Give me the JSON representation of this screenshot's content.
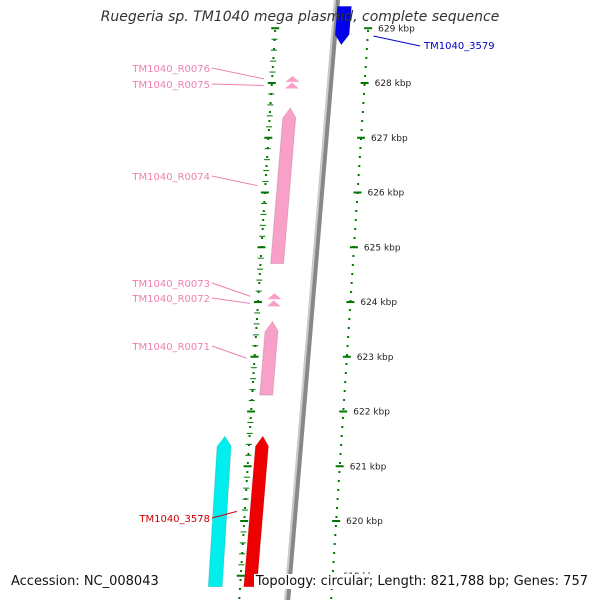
{
  "title": "Ruegeria sp. TM1040 mega plasmid, complete sequence",
  "footer": {
    "accession": "Accession: NC_008043",
    "summary": "Topology: circular; Length: 821,788 bp; Genes: 757"
  },
  "colors": {
    "trna_features": "#f9a0c8",
    "label_pink": "#f080b0",
    "cds_blue": "#0000ee",
    "cds_red": "#ee0000",
    "cds_cyan": "#00eeee",
    "backbone": "#888888",
    "tick_green": "#007700",
    "label_red": "#cc0000",
    "label_blue": "#0000cc"
  },
  "scale": {
    "unit": "kbp",
    "ticks": [
      {
        "kbp": 629,
        "label": "629 kbp"
      },
      {
        "kbp": 628,
        "label": "628 kbp"
      },
      {
        "kbp": 627,
        "label": "627 kbp"
      },
      {
        "kbp": 626,
        "label": "626 kbp"
      },
      {
        "kbp": 625,
        "label": "625 kbp"
      },
      {
        "kbp": 624,
        "label": "624 kbp"
      },
      {
        "kbp": 623,
        "label": "623 kbp"
      },
      {
        "kbp": 622,
        "label": "622 kbp"
      },
      {
        "kbp": 621,
        "label": "621 kbp"
      },
      {
        "kbp": 620,
        "label": "620 kbp"
      },
      {
        "kbp": 619,
        "label": "619 kbp"
      }
    ]
  },
  "features": [
    {
      "id": "TM1040_3579",
      "type": "CDS",
      "strand": "forward",
      "color": "#0000ee",
      "start_kbp": 629.4,
      "end_kbp": 628.7,
      "label": "TM1040_3579"
    },
    {
      "id": "TM1040_R0076",
      "type": "tRNA",
      "strand": "reverse",
      "color": "#f9a0c8",
      "start_kbp": 628.1,
      "end_kbp": 628.05,
      "label": "TM1040_R0076"
    },
    {
      "id": "TM1040_R0075",
      "type": "tRNA",
      "strand": "reverse",
      "color": "#f9a0c8",
      "start_kbp": 627.98,
      "end_kbp": 627.93,
      "label": "TM1040_R0075"
    },
    {
      "id": "TM1040_R0074",
      "type": "rRNA",
      "strand": "reverse",
      "color": "#f9a0c8",
      "start_kbp": 627.55,
      "end_kbp": 624.7,
      "label": "TM1040_R0074"
    },
    {
      "id": "TM1040_R0073",
      "type": "tRNA",
      "strand": "reverse",
      "color": "#f9a0c8",
      "start_kbp": 624.13,
      "end_kbp": 624.08,
      "label": "TM1040_R0073"
    },
    {
      "id": "TM1040_R0072",
      "type": "tRNA",
      "strand": "reverse",
      "color": "#f9a0c8",
      "start_kbp": 624.0,
      "end_kbp": 623.95,
      "label": "TM1040_R0072"
    },
    {
      "id": "TM1040_R0071",
      "type": "rRNA",
      "strand": "reverse",
      "color": "#f9a0c8",
      "start_kbp": 623.65,
      "end_kbp": 622.3,
      "label": "TM1040_R0071"
    },
    {
      "id": "TM1040_3578",
      "type": "CDS",
      "strand": "reverse",
      "color": "#ee0000",
      "start_kbp": 621.55,
      "end_kbp": 618.8,
      "label": "TM1040_3578"
    },
    {
      "id": "cyan_cds",
      "type": "CDS",
      "strand": "reverse",
      "color": "#00eeee",
      "start_kbp": 621.55,
      "end_kbp": 618.8,
      "label": ""
    }
  ]
}
